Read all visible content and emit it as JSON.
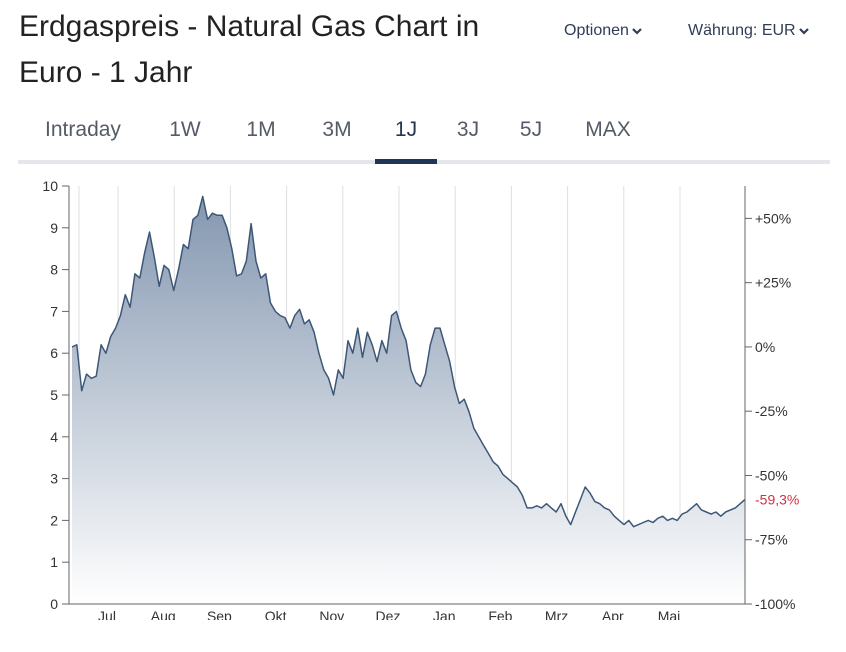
{
  "header": {
    "title": "Erdgaspreis - Natural Gas Chart in Euro - 1 Jahr",
    "options_label": "Optionen",
    "currency_label": "Währung: EUR"
  },
  "tabs": [
    {
      "label": "Intraday",
      "active": false
    },
    {
      "label": "1W",
      "active": false
    },
    {
      "label": "1M",
      "active": false
    },
    {
      "label": "3M",
      "active": false
    },
    {
      "label": "1J",
      "active": true
    },
    {
      "label": "3J",
      "active": false
    },
    {
      "label": "5J",
      "active": false
    },
    {
      "label": "MAX",
      "active": false
    }
  ],
  "colors": {
    "line": "#3d5777",
    "area_top": "#8497b0",
    "area_bottom": "#ffffff",
    "grid": "#dcdfe4",
    "negative": "#cc3344",
    "active_tab": "#1f3456"
  },
  "chart_data": {
    "type": "area",
    "x_ticks": [
      "Jul",
      "Aug",
      "Sep",
      "Okt",
      "Nov",
      "Dez",
      "Jan",
      "Feb",
      "Mrz",
      "Apr",
      "Mai"
    ],
    "y_ticks": [
      0,
      1,
      2,
      3,
      4,
      5,
      6,
      7,
      8,
      9,
      10
    ],
    "ylim": [
      0,
      10
    ],
    "y2_ticks": [
      "+50%",
      "+25%",
      "0%",
      "-25%",
      "-50%",
      "-75%",
      "-100%"
    ],
    "y2_values": [
      50,
      25,
      0,
      -25,
      -50,
      -75,
      -100
    ],
    "change_label": "-59,3%",
    "start_value": 6.15,
    "grid": "vertical",
    "values": [
      6.15,
      6.2,
      5.1,
      5.5,
      5.4,
      5.45,
      6.2,
      6.0,
      6.4,
      6.6,
      6.9,
      7.4,
      7.1,
      7.9,
      7.8,
      8.4,
      8.9,
      8.3,
      7.6,
      8.1,
      8.0,
      7.5,
      8.0,
      8.6,
      8.5,
      9.2,
      9.3,
      9.75,
      9.2,
      9.35,
      9.3,
      9.3,
      9.0,
      8.5,
      7.85,
      7.9,
      8.2,
      9.1,
      8.2,
      7.8,
      7.9,
      7.2,
      7.0,
      6.9,
      6.85,
      6.6,
      6.9,
      7.05,
      6.7,
      6.8,
      6.5,
      6.0,
      5.6,
      5.4,
      5.0,
      5.6,
      5.4,
      6.3,
      6.0,
      6.6,
      5.9,
      6.5,
      6.2,
      5.8,
      6.3,
      6.0,
      6.9,
      7.0,
      6.6,
      6.3,
      5.6,
      5.3,
      5.2,
      5.5,
      6.2,
      6.6,
      6.6,
      6.2,
      5.8,
      5.2,
      4.8,
      4.9,
      4.6,
      4.2,
      4.0,
      3.8,
      3.6,
      3.4,
      3.3,
      3.1,
      3.0,
      2.9,
      2.8,
      2.6,
      2.3,
      2.3,
      2.35,
      2.3,
      2.4,
      2.3,
      2.2,
      2.4,
      2.1,
      1.9,
      2.2,
      2.5,
      2.8,
      2.65,
      2.45,
      2.4,
      2.3,
      2.25,
      2.1,
      2.0,
      1.9,
      2.0,
      1.85,
      1.9,
      1.95,
      2.0,
      1.95,
      2.05,
      2.1,
      2.0,
      2.05,
      2.0,
      2.15,
      2.2,
      2.3,
      2.4,
      2.25,
      2.2,
      2.15,
      2.2,
      2.1,
      2.2,
      2.25,
      2.3,
      2.4,
      2.5
    ]
  }
}
